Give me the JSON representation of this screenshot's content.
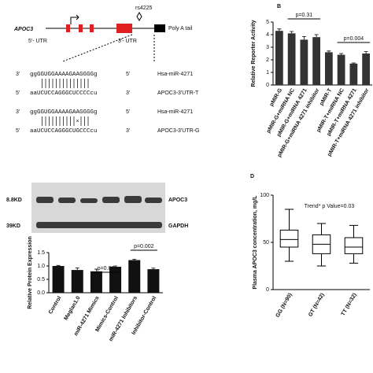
{
  "diagram": {
    "gene": "APOC3",
    "utr5": "5'- UTR",
    "utr3": "3'- UTR",
    "snp": "rs4225",
    "polya": "Poly A tail",
    "pairs": [
      {
        "top_left": "3'",
        "top_seq": "ggGGUGGAAAAGAAGGGGg",
        "top_right": "5'",
        "top_name": "Hsa-miR-4271",
        "bottom_left": "5'",
        "bottom_seq": "aaUCUCCAGGGCUCCCCcu",
        "bottom_right": "3'",
        "bottom_name": "APOC3-3'UTR-T"
      },
      {
        "top_left": "3'",
        "top_seq": "ggGGUGGAAAAGAAGGGGg",
        "top_right": "5'",
        "top_name": "Hsa-miR-4271",
        "bottom_left": "5'",
        "bottom_seq": "aaUCUCCAGGGCUGCCCcu",
        "bottom_right": "3'",
        "bottom_name": "APOC3-3'UTR-G"
      }
    ]
  },
  "blot": {
    "size1": "8.8KD",
    "protein1": "APOC3",
    "size2": "39KD",
    "protein2": "GAPDH"
  },
  "chart_data": [
    {
      "type": "bar",
      "panel": "B",
      "ylabel": "Relative Reporter Activity",
      "color": "#333333",
      "categories": [
        "pMIR-G",
        "pMIR-G+miRNA NC",
        "pMIR-G+miRNA 4271",
        "pMIR-G+miRNA 4271 inhibitor",
        "pMIR-T",
        "pMIR-T+miRNA NC",
        "pMIR-T+miRNA 4271",
        "pMIR-T+miRNA 4271 inhibitor"
      ],
      "values": [
        4.3,
        4.1,
        3.6,
        3.8,
        2.6,
        2.4,
        1.7,
        2.5
      ],
      "errors": [
        0.15,
        0.15,
        0.25,
        0.2,
        0.1,
        0.1,
        0.05,
        0.15
      ],
      "ylim": [
        0,
        5
      ],
      "yticks": [
        0,
        1,
        2,
        3,
        4,
        5
      ],
      "annotations": [
        "p=0.31",
        "p=0.004"
      ]
    },
    {
      "type": "bar",
      "ylabel": "Relative Protein Expression",
      "color": "#111111",
      "categories": [
        "Control",
        "Meglan1.0",
        "miR-4271 Mimics",
        "Mimics-Control",
        "miR-4271 Inhibitors",
        "Inhibitor-Control"
      ],
      "values": [
        1.0,
        0.85,
        0.8,
        0.97,
        1.22,
        0.88
      ],
      "errors": [
        0.02,
        0.08,
        0.08,
        0.03,
        0.03,
        0.04
      ],
      "ylim": [
        0,
        1.5
      ],
      "yticks": [
        {
          "value": 0,
          "label": "0.0"
        },
        {
          "value": 0.5,
          "label": "0.5"
        },
        {
          "value": 1,
          "label": "1.0"
        },
        {
          "value": 1.5,
          "label": "1.5"
        }
      ],
      "annotations": [
        "p=0.02",
        "p=0.002"
      ]
    },
    {
      "type": "box",
      "panel": "D",
      "title": "Trend* p Value=0.03",
      "ylabel": "Plasma APOC3 concentration, mg/L",
      "categories": [
        "GG (N=90)",
        "GT (N=42)",
        "TT (N=32)"
      ],
      "boxes": [
        {
          "min": 30,
          "q1": 45,
          "median": 53,
          "q3": 63,
          "max": 85
        },
        {
          "min": 25,
          "q1": 38,
          "median": 48,
          "q3": 58,
          "max": 70
        },
        {
          "min": 28,
          "q1": 38,
          "median": 45,
          "q3": 55,
          "max": 68
        }
      ],
      "ylim": [
        0,
        100
      ],
      "yticks": [
        0,
        50,
        100
      ]
    }
  ]
}
